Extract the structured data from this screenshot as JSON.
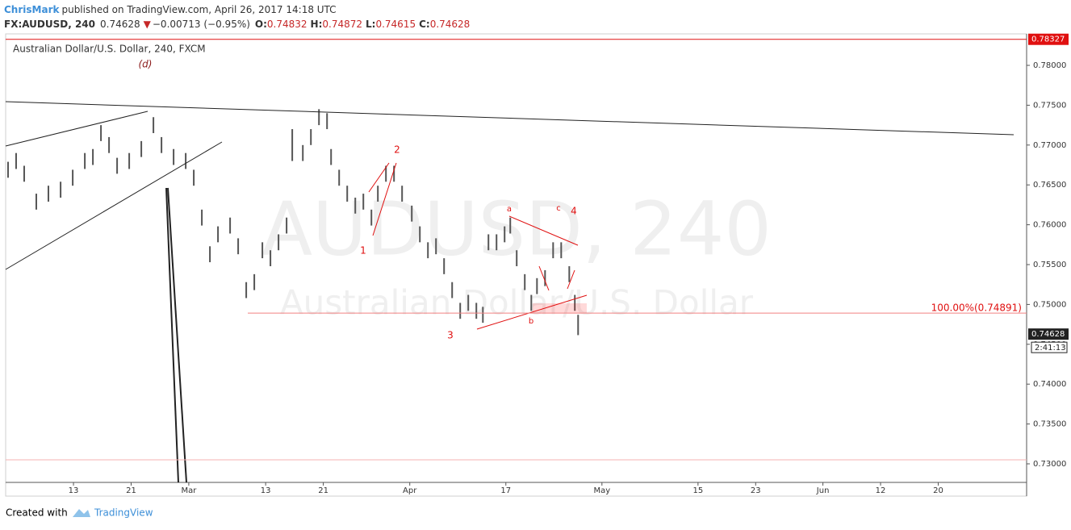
{
  "header": {
    "author": "ChrisMark",
    "published": "published on TradingView.com, April 26, 2017 14:18 UTC",
    "symbol": "FX:AUDUSD, 240",
    "last": "0.74628",
    "change": "−0.00713 (−0.95%)",
    "open_label": "O:",
    "open": "0.74832",
    "high_label": "H:",
    "high": "0.74872",
    "low_label": "L:",
    "low": "0.74615",
    "close_label": "C:",
    "close": "0.74628"
  },
  "chart_data": {
    "type": "ohlc",
    "title": "Australian Dollar/U.S. Dollar, 240, FXCM",
    "watermark": [
      "AUDUSD, 240",
      "Australian Dollar/U.S. Dollar"
    ],
    "color": "#555555",
    "x": [
      -6.81,
      -5.97,
      -5.13,
      -3.87,
      -2.61,
      -1.34,
      -0.08,
      1.18,
      2.02,
      2.86,
      3.7,
      4.54,
      5.8,
      7.06,
      8.32,
      9.16,
      10.42,
      11.68,
      12.52,
      13.36,
      14.2,
      15.04,
      16.3,
      17.14,
      17.98,
      18.82,
      19.66,
      20.5,
      21.34,
      22.18,
      22.77,
      23.87,
      24.71,
      25.55,
      26.39,
      26.81,
      27.65,
      28.49,
      29.33,
      30.17,
      31.01,
      31.68,
      32.52,
      33.36,
      34.2,
      35.21,
      36.05,
      36.89,
      37.73,
      38.57,
      39.41,
      40.25,
      41.09,
      41.93,
      42.61,
      43.19,
      44.03,
      44.87,
      45.46,
      46.13,
      46.97,
      47.65,
      48.24,
      49.08,
      49.92,
      50.76,
      51.6,
      52.18,
      52.52
    ],
    "high": [
      0.7679,
      0.769,
      0.7674,
      0.7639,
      0.7649,
      0.7654,
      0.7669,
      0.769,
      0.7695,
      0.7725,
      0.771,
      0.7684,
      0.769,
      0.7705,
      0.7735,
      0.771,
      0.7695,
      0.769,
      0.7669,
      0.7619,
      0.7573,
      0.7598,
      0.7609,
      0.7583,
      0.7528,
      0.7538,
      0.7578,
      0.7568,
      0.7588,
      0.7609,
      0.772,
      0.77,
      0.772,
      0.7745,
      0.774,
      0.7695,
      0.7669,
      0.7649,
      0.7634,
      0.7639,
      0.7619,
      0.7649,
      0.7674,
      0.7674,
      0.7649,
      0.7624,
      0.7598,
      0.7578,
      0.7583,
      0.7558,
      0.7528,
      0.7502,
      0.7512,
      0.7502,
      0.7497,
      0.7588,
      0.7588,
      0.7598,
      0.7609,
      0.7568,
      0.7538,
      0.7512,
      0.7533,
      0.7543,
      0.7578,
      0.7578,
      0.7548,
      0.7512,
      0.7487
    ],
    "low": [
      0.7659,
      0.767,
      0.7654,
      0.7619,
      0.7629,
      0.7634,
      0.7649,
      0.767,
      0.7675,
      0.7705,
      0.769,
      0.7664,
      0.767,
      0.7685,
      0.7715,
      0.769,
      0.7675,
      0.767,
      0.7649,
      0.7599,
      0.7553,
      0.7578,
      0.7589,
      0.7563,
      0.7508,
      0.7518,
      0.7558,
      0.7548,
      0.7568,
      0.7589,
      0.768,
      0.768,
      0.77,
      0.7725,
      0.772,
      0.7675,
      0.7649,
      0.7629,
      0.7614,
      0.7619,
      0.7599,
      0.7629,
      0.7654,
      0.7654,
      0.7629,
      0.7604,
      0.7578,
      0.7558,
      0.7563,
      0.7538,
      0.7508,
      0.7482,
      0.7492,
      0.7482,
      0.7477,
      0.7568,
      0.7568,
      0.7578,
      0.7589,
      0.7548,
      0.7518,
      0.7492,
      0.7513,
      0.7523,
      0.7558,
      0.7558,
      0.7528,
      0.7492,
      0.74615
    ],
    "xlim": [
      -7.06,
      99.2
    ],
    "xticks": [
      {
        "value": 0,
        "label": "13"
      },
      {
        "value": 6,
        "label": "21"
      },
      {
        "value": 12,
        "label": "Mar"
      },
      {
        "value": 20,
        "label": "13"
      },
      {
        "value": 26,
        "label": "21"
      },
      {
        "value": 35,
        "label": "Apr"
      },
      {
        "value": 45,
        "label": "17"
      },
      {
        "value": 55,
        "label": "May"
      },
      {
        "value": 65,
        "label": "15"
      },
      {
        "value": 71,
        "label": "23"
      },
      {
        "value": 78,
        "label": "Jun"
      },
      {
        "value": 84,
        "label": "12"
      },
      {
        "value": 90,
        "label": "20"
      }
    ],
    "ylim": [
      0.72767,
      0.78395
    ],
    "yticks": [
      {
        "value": 0.73,
        "label": "0.73000"
      },
      {
        "value": 0.735,
        "label": "0.73500"
      },
      {
        "value": 0.74,
        "label": "0.74000"
      },
      {
        "value": 0.745,
        "label": "0.74500"
      },
      {
        "value": 0.75,
        "label": "0.75000"
      },
      {
        "value": 0.755,
        "label": "0.75500"
      },
      {
        "value": 0.76,
        "label": "0.76000"
      },
      {
        "value": 0.765,
        "label": "0.76500"
      },
      {
        "value": 0.77,
        "label": "0.77000"
      },
      {
        "value": 0.775,
        "label": "0.77500"
      },
      {
        "value": 0.78,
        "label": "0.78000"
      }
    ],
    "high_line": 0.78327,
    "last_price": 0.74628,
    "countdown": "2:41:13",
    "fib_level": {
      "value": 0.74891,
      "label": "100.00%(0.74891)"
    },
    "annotations": [
      "(d)",
      "1",
      "2",
      "3",
      "4",
      "a",
      "b",
      "c"
    ]
  },
  "footer": {
    "created": "Created with",
    "brand": "TradingView"
  }
}
